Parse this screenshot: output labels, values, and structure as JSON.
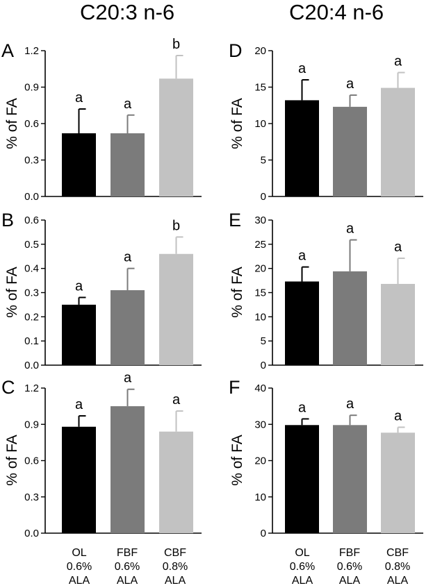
{
  "columns": [
    {
      "title": "C20:3 n-6"
    },
    {
      "title": "C20:4 n-6"
    }
  ],
  "category_labels": [
    {
      "line1": "OL",
      "line2": "0.6%",
      "line3": "ALA"
    },
    {
      "line1": "FBF",
      "line2": "0.6%",
      "line3": "ALA"
    },
    {
      "line1": "CBF",
      "line2": "0.8%",
      "line3": "ALA"
    }
  ],
  "colors": {
    "OL": "#000000",
    "FBF": "#7b7b7b",
    "CBF": "#c2c2c2"
  },
  "chart_data": [
    {
      "panel": "A",
      "type": "bar",
      "ylabel": "% of FA",
      "ylim": [
        0,
        1.2
      ],
      "yticks": [
        "0.0",
        "0.3",
        "0.6",
        "0.9",
        "1.2"
      ],
      "categories": [
        "OL",
        "FBF",
        "CBF"
      ],
      "values": [
        0.52,
        0.52,
        0.97
      ],
      "errors": [
        0.2,
        0.15,
        0.19
      ],
      "letters": [
        "a",
        "a",
        "b"
      ]
    },
    {
      "panel": "B",
      "type": "bar",
      "ylabel": "% of FA",
      "ylim": [
        0,
        0.6
      ],
      "yticks": [
        "0.0",
        "0.1",
        "0.2",
        "0.3",
        "0.4",
        "0.5",
        "0.6"
      ],
      "categories": [
        "OL",
        "FBF",
        "CBF"
      ],
      "values": [
        0.25,
        0.31,
        0.46
      ],
      "errors": [
        0.03,
        0.09,
        0.07
      ],
      "letters": [
        "a",
        "a",
        "b"
      ]
    },
    {
      "panel": "C",
      "type": "bar",
      "ylabel": "% of FA",
      "ylim": [
        0,
        1.2
      ],
      "yticks": [
        "0.0",
        "0.3",
        "0.6",
        "0.9",
        "1.2"
      ],
      "categories": [
        "OL",
        "FBF",
        "CBF"
      ],
      "values": [
        0.88,
        1.05,
        0.84
      ],
      "errors": [
        0.09,
        0.14,
        0.17
      ],
      "letters": [
        "a",
        "a",
        "a"
      ]
    },
    {
      "panel": "D",
      "type": "bar",
      "ylabel": "% of FA",
      "ylim": [
        0,
        20
      ],
      "yticks": [
        "0",
        "5",
        "10",
        "15",
        "20"
      ],
      "categories": [
        "OL",
        "FBF",
        "CBF"
      ],
      "values": [
        13.2,
        12.3,
        14.9
      ],
      "errors": [
        2.8,
        1.6,
        2.1
      ],
      "letters": [
        "a",
        "a",
        "a"
      ]
    },
    {
      "panel": "E",
      "type": "bar",
      "ylabel": "% of FA",
      "ylim": [
        0,
        30
      ],
      "yticks": [
        "0",
        "5",
        "10",
        "15",
        "20",
        "25",
        "30"
      ],
      "categories": [
        "OL",
        "FBF",
        "CBF"
      ],
      "values": [
        17.3,
        19.4,
        16.8
      ],
      "errors": [
        3.0,
        6.5,
        5.3
      ],
      "letters": [
        "a",
        "a",
        "a"
      ]
    },
    {
      "panel": "F",
      "type": "bar",
      "ylabel": "% of FA",
      "ylim": [
        0,
        40
      ],
      "yticks": [
        "0",
        "10",
        "20",
        "30",
        "40"
      ],
      "categories": [
        "OL",
        "FBF",
        "CBF"
      ],
      "values": [
        29.8,
        29.8,
        27.7
      ],
      "errors": [
        1.7,
        2.7,
        1.5
      ],
      "letters": [
        "a",
        "a",
        "a"
      ]
    }
  ]
}
